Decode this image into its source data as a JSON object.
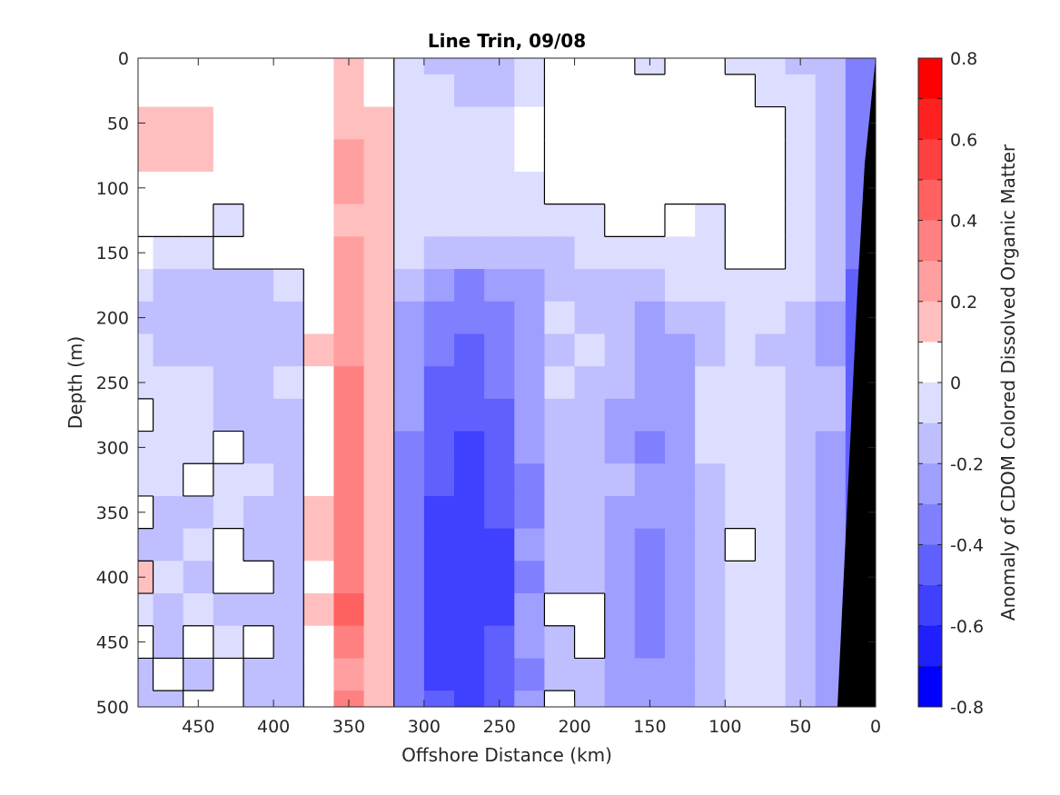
{
  "chart_data": {
    "type": "heatmap",
    "title": "Line Trin, 09/08",
    "xlabel": "Offshore Distance (km)",
    "ylabel": "Depth (m)",
    "x_direction": "reversed",
    "y_direction": "reversed",
    "xlim": [
      0,
      490
    ],
    "ylim": [
      0,
      500
    ],
    "x_ticks": [
      450,
      400,
      350,
      300,
      250,
      200,
      150,
      100,
      50,
      0
    ],
    "y_ticks": [
      0,
      50,
      100,
      150,
      200,
      250,
      300,
      350,
      400,
      450,
      500
    ],
    "colorbar": {
      "label": "Anomaly of CDOM Colored Dissolved Organic Matter",
      "ticks": [
        0.8,
        0.6,
        0.4,
        0.2,
        0,
        -0.2,
        -0.4,
        -0.6,
        -0.8
      ],
      "range": [
        -0.8,
        0.8
      ],
      "levels": 16,
      "colormap": "blue-white-red"
    },
    "zero_contour": "black lines",
    "bathymetry_mask": "black",
    "x_km": [
      490,
      470,
      450,
      430,
      410,
      390,
      370,
      350,
      330,
      310,
      290,
      270,
      250,
      230,
      210,
      190,
      170,
      150,
      130,
      110,
      90,
      70,
      50,
      30,
      10
    ],
    "depth_m": [
      0,
      25,
      50,
      75,
      100,
      125,
      150,
      175,
      200,
      225,
      250,
      275,
      300,
      325,
      350,
      375,
      400,
      425,
      450,
      475,
      500
    ],
    "values": [
      [
        0.02,
        0.03,
        0.02,
        0.03,
        0.02,
        0.05,
        0.06,
        0.15,
        0.08,
        -0.05,
        -0.12,
        -0.16,
        -0.14,
        -0.05,
        0.03,
        0.04,
        0.05,
        -0.05,
        0.02,
        0.03,
        -0.04,
        -0.06,
        -0.12,
        -0.2,
        -0.35
      ],
      [
        0.03,
        0.06,
        0.05,
        0.03,
        0.02,
        0.03,
        0.07,
        0.16,
        0.09,
        -0.02,
        -0.08,
        -0.14,
        -0.12,
        -0.04,
        0.04,
        0.05,
        0.03,
        0.03,
        0.05,
        0.05,
        0.04,
        -0.02,
        -0.1,
        -0.18,
        -0.35
      ],
      [
        0.15,
        0.16,
        0.12,
        0.06,
        0.03,
        0.06,
        0.08,
        0.18,
        0.1,
        -0.02,
        -0.04,
        -0.06,
        -0.05,
        0.0,
        0.04,
        0.05,
        0.02,
        0.04,
        0.04,
        0.05,
        0.05,
        0.02,
        -0.08,
        -0.16,
        -0.35
      ],
      [
        0.13,
        0.14,
        0.12,
        0.06,
        0.04,
        0.07,
        0.09,
        0.22,
        0.11,
        -0.02,
        -0.02,
        -0.04,
        -0.04,
        0.0,
        0.03,
        0.04,
        0.03,
        0.05,
        0.04,
        0.05,
        0.05,
        0.03,
        -0.06,
        -0.16,
        -0.35
      ],
      [
        0.03,
        0.03,
        0.03,
        0.04,
        0.05,
        0.06,
        0.08,
        0.2,
        0.11,
        -0.04,
        -0.07,
        -0.06,
        -0.06,
        -0.05,
        0.01,
        0.03,
        0.02,
        0.03,
        0.04,
        0.05,
        0.06,
        0.04,
        -0.06,
        -0.16,
        -0.35
      ],
      [
        0.02,
        0.03,
        0.02,
        -0.02,
        0.03,
        0.06,
        0.08,
        0.16,
        0.11,
        -0.05,
        -0.09,
        -0.09,
        -0.08,
        -0.06,
        -0.05,
        -0.05,
        0.02,
        0.04,
        0.0,
        -0.04,
        0.05,
        0.04,
        -0.06,
        -0.16,
        -0.35
      ],
      [
        0.0,
        -0.02,
        -0.03,
        0.02,
        0.04,
        0.06,
        0.08,
        0.24,
        0.12,
        -0.07,
        -0.12,
        -0.12,
        -0.13,
        -0.12,
        -0.12,
        -0.1,
        -0.08,
        -0.07,
        -0.08,
        -0.06,
        0.03,
        0.04,
        -0.07,
        -0.2,
        -0.4
      ],
      [
        -0.06,
        -0.12,
        -0.12,
        -0.15,
        -0.12,
        -0.1,
        0.06,
        0.26,
        0.12,
        -0.2,
        -0.3,
        -0.32,
        -0.3,
        -0.3,
        -0.18,
        -0.15,
        -0.12,
        -0.14,
        -0.1,
        -0.08,
        -0.05,
        -0.08,
        -0.1,
        -0.2,
        -0.45
      ],
      [
        -0.12,
        -0.16,
        -0.13,
        -0.16,
        -0.17,
        -0.12,
        0.08,
        0.24,
        0.12,
        -0.24,
        -0.36,
        -0.4,
        -0.36,
        -0.28,
        -0.08,
        -0.12,
        -0.2,
        -0.22,
        -0.18,
        -0.14,
        -0.06,
        -0.1,
        -0.12,
        -0.22,
        -0.5
      ],
      [
        -0.1,
        -0.14,
        -0.12,
        -0.14,
        -0.17,
        -0.14,
        0.1,
        0.28,
        0.14,
        -0.24,
        -0.38,
        -0.42,
        -0.38,
        -0.22,
        -0.12,
        -0.06,
        -0.18,
        -0.26,
        -0.22,
        -0.12,
        -0.06,
        -0.12,
        -0.14,
        -0.22,
        -0.5
      ],
      [
        -0.05,
        -0.08,
        -0.1,
        -0.13,
        -0.12,
        -0.1,
        0.08,
        0.3,
        0.14,
        -0.26,
        -0.42,
        -0.46,
        -0.4,
        -0.24,
        -0.1,
        -0.14,
        -0.2,
        -0.28,
        -0.26,
        -0.1,
        -0.08,
        -0.1,
        -0.12,
        -0.2,
        -0.45
      ],
      [
        0.03,
        -0.06,
        -0.08,
        -0.12,
        -0.14,
        -0.12,
        0.06,
        0.32,
        0.16,
        -0.3,
        -0.46,
        -0.5,
        -0.42,
        -0.28,
        -0.12,
        -0.16,
        -0.22,
        -0.3,
        -0.24,
        -0.08,
        -0.06,
        -0.1,
        -0.12,
        -0.2,
        -0.45
      ],
      [
        -0.08,
        -0.1,
        -0.04,
        0.05,
        -0.12,
        -0.14,
        0.06,
        0.34,
        0.16,
        -0.34,
        -0.5,
        -0.52,
        -0.46,
        -0.3,
        -0.18,
        -0.12,
        -0.26,
        -0.32,
        -0.26,
        -0.1,
        -0.06,
        -0.1,
        -0.12,
        -0.22,
        -0.45
      ],
      [
        -0.1,
        -0.06,
        0.03,
        -0.04,
        -0.1,
        -0.12,
        0.08,
        0.3,
        0.14,
        -0.32,
        -0.5,
        -0.56,
        -0.48,
        -0.34,
        -0.2,
        -0.12,
        -0.18,
        -0.3,
        -0.28,
        -0.12,
        -0.08,
        -0.1,
        -0.12,
        -0.22,
        -0.45
      ],
      [
        0.03,
        -0.12,
        -0.12,
        -0.1,
        -0.14,
        -0.12,
        0.1,
        0.32,
        0.14,
        -0.34,
        -0.52,
        -0.56,
        -0.5,
        -0.34,
        -0.2,
        -0.16,
        -0.22,
        -0.3,
        -0.26,
        -0.12,
        -0.06,
        -0.1,
        -0.12,
        -0.24,
        -0.45
      ],
      [
        -0.12,
        -0.14,
        -0.06,
        0.04,
        -0.12,
        -0.14,
        0.1,
        0.3,
        0.12,
        -0.36,
        -0.54,
        -0.56,
        -0.52,
        -0.3,
        -0.16,
        -0.12,
        -0.26,
        -0.32,
        -0.28,
        -0.14,
        0.03,
        -0.1,
        -0.12,
        -0.24,
        -0.45
      ],
      [
        0.16,
        -0.08,
        -0.12,
        0.04,
        0.02,
        -0.14,
        0.08,
        0.36,
        0.12,
        -0.38,
        -0.56,
        -0.6,
        -0.52,
        -0.34,
        -0.14,
        -0.12,
        -0.28,
        -0.34,
        -0.3,
        -0.12,
        -0.08,
        -0.1,
        -0.12,
        -0.24,
        -0.45
      ],
      [
        -0.1,
        -0.14,
        -0.08,
        -0.12,
        -0.14,
        -0.12,
        0.1,
        0.4,
        0.12,
        -0.38,
        -0.58,
        -0.6,
        -0.54,
        -0.24,
        0.04,
        0.04,
        -0.28,
        -0.34,
        -0.3,
        -0.14,
        -0.06,
        -0.1,
        -0.12,
        -0.26,
        -0.45
      ],
      [
        0.03,
        -0.12,
        0.03,
        -0.08,
        0.03,
        -0.12,
        0.08,
        0.36,
        0.12,
        -0.36,
        -0.56,
        -0.58,
        -0.5,
        -0.3,
        -0.12,
        0.02,
        -0.26,
        -0.32,
        -0.28,
        -0.12,
        -0.06,
        -0.1,
        -0.12,
        -0.24,
        -0.45
      ],
      [
        -0.12,
        0.03,
        -0.12,
        0.04,
        -0.12,
        -0.14,
        0.05,
        0.28,
        0.1,
        -0.34,
        -0.54,
        -0.56,
        -0.48,
        -0.34,
        -0.18,
        -0.12,
        -0.24,
        -0.3,
        -0.26,
        -0.12,
        -0.08,
        -0.1,
        -0.12,
        -0.24,
        -0.45
      ],
      [
        -0.14,
        -0.14,
        0.03,
        0.03,
        -0.12,
        -0.14,
        0.06,
        0.32,
        0.1,
        -0.32,
        -0.5,
        -0.54,
        -0.46,
        -0.3,
        0.03,
        -0.12,
        -0.22,
        -0.28,
        -0.24,
        -0.12,
        -0.1,
        -0.1,
        -0.12,
        -0.22,
        -0.45
      ]
    ]
  }
}
